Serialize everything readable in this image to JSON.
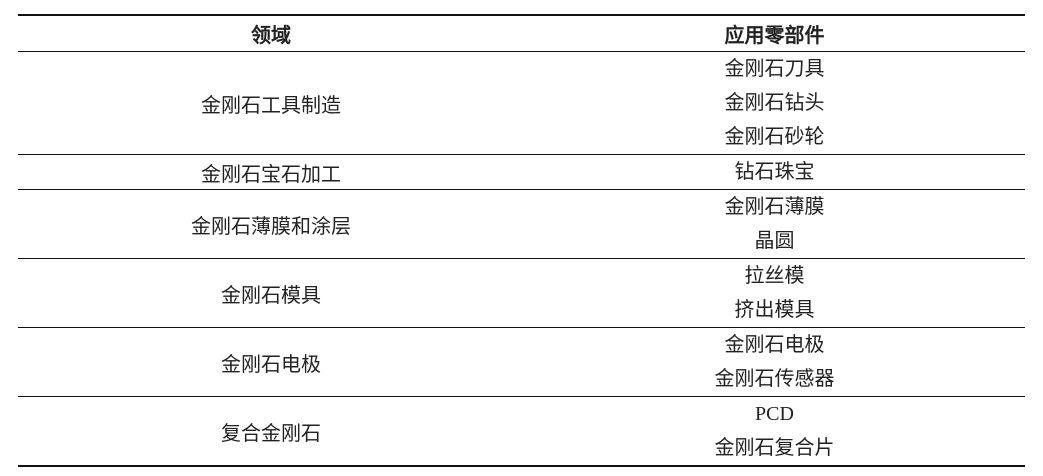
{
  "table": {
    "header": [
      "领域",
      "应用零部件"
    ],
    "rows": [
      {
        "field": "金刚石工具制造",
        "parts": [
          "金刚石刀具",
          "金刚石钻头",
          "金刚石砂轮"
        ]
      },
      {
        "field": "金刚石宝石加工",
        "parts": [
          "钻石珠宝"
        ]
      },
      {
        "field": "金刚石薄膜和涂层",
        "parts": [
          "金刚石薄膜",
          "晶圆"
        ]
      },
      {
        "field": "金刚石模具",
        "parts": [
          "拉丝模",
          "挤出模具"
        ]
      },
      {
        "field": "金刚石电极",
        "parts": [
          "金刚石电极",
          "金刚石传感器"
        ]
      },
      {
        "field": "复合金刚石",
        "parts": [
          "PCD",
          "金刚石复合片"
        ]
      }
    ]
  }
}
